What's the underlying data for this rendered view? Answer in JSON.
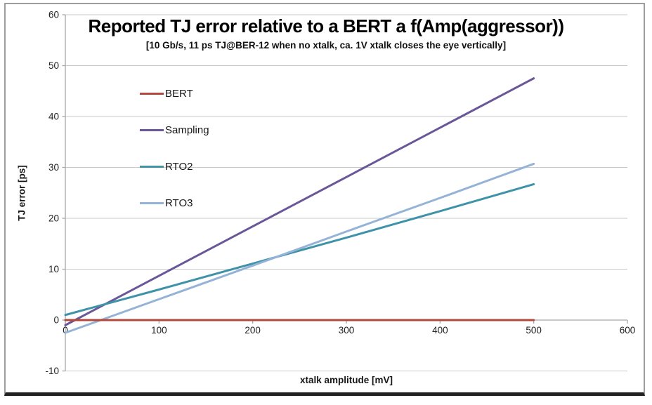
{
  "chart_data": {
    "type": "line",
    "title": "Reported TJ error relative to a BERT a f(Amp(aggressor))",
    "subtitle": "[10 Gb/s, 11 ps TJ@BER-12 when no xtalk, ca. 1V xtalk closes the eye vertically]",
    "xlabel": "xtalk amplitude [mV]",
    "ylabel": "TJ error [ps]",
    "xlim": [
      0,
      600
    ],
    "ylim": [
      -10,
      60
    ],
    "xticks": [
      0,
      100,
      200,
      300,
      400,
      500,
      600
    ],
    "yticks": [
      -10,
      0,
      10,
      20,
      30,
      40,
      50,
      60
    ],
    "grid": true,
    "legend_position": "inside-upper-left",
    "draw_order": [
      1,
      2,
      3,
      0
    ],
    "series": [
      {
        "name": "BERT",
        "color": "#B4483F",
        "x": [
          0,
          500
        ],
        "y": [
          0,
          0
        ]
      },
      {
        "name": "Sampling",
        "color": "#6A5798",
        "x": [
          0,
          100,
          200,
          300,
          400,
          500
        ],
        "y": [
          -1,
          8.7,
          18.4,
          28.1,
          37.8,
          47.5
        ]
      },
      {
        "name": "RTO2",
        "color": "#3E93A8",
        "x": [
          0,
          100,
          200,
          300,
          400,
          500
        ],
        "y": [
          1.0,
          6.0,
          11.1,
          16.2,
          21.4,
          26.7
        ]
      },
      {
        "name": "RTO3",
        "color": "#95B3D7",
        "x": [
          0,
          100,
          200,
          300,
          400,
          500
        ],
        "y": [
          -2.5,
          4.1,
          10.7,
          17.4,
          24.0,
          30.7
        ]
      }
    ],
    "colors": {
      "gridline": "#C9C9C9",
      "axis": "#A8A8A8",
      "tick_text": "#222222"
    }
  }
}
